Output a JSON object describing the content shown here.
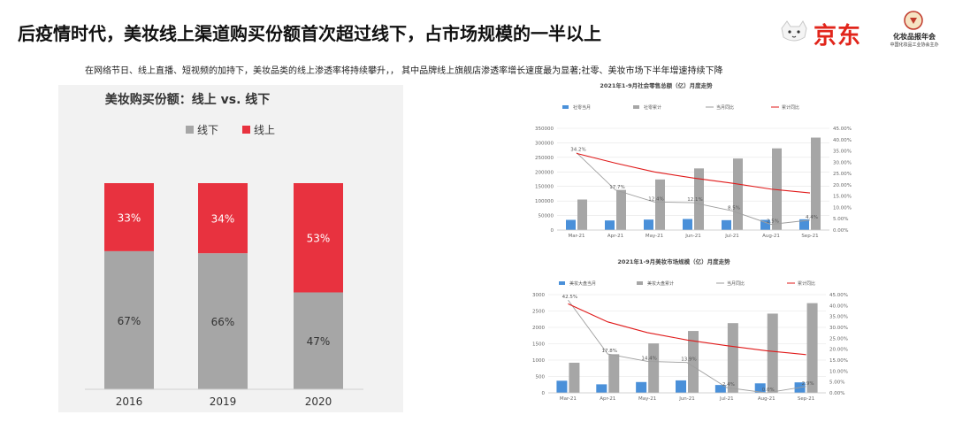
{
  "header": {
    "title": "后疫情时代，美妆线上渠道购买份额首次超过线下，占市场规模的一半以上",
    "subtitle": "在网络节日、线上直播、短视频的加持下，美妆品类的线上渗透率将持续攀升，，  其中品牌线上旗舰店渗透率增长速度最为显著;社零、美妆市场下半年增速持续下降"
  },
  "logos": {
    "jd_text": "京东",
    "assoc_name": "化妆品报年会",
    "assoc_subname": "中国化妆品工业协会主办",
    "jd_icon": "dog-icon",
    "assoc_icon": "seal-icon"
  },
  "colors": {
    "offline": "#a6a6a6",
    "online": "#e8323f",
    "blue": "#4a90d9",
    "gray": "#a6a6a6",
    "red_line": "#e01a1a",
    "gray_line": "#9e9e9e"
  },
  "chart_data": [
    {
      "type": "bar",
      "stacked": true,
      "percent": true,
      "title": "美妆购买份额：线上 vs. 线下",
      "categories": [
        "2016",
        "2019",
        "2020"
      ],
      "series": [
        {
          "name": "线下",
          "values": [
            67,
            66,
            47
          ],
          "labels": [
            "67%",
            "66%",
            "47%"
          ]
        },
        {
          "name": "线上",
          "values": [
            33,
            34,
            53
          ],
          "labels": [
            "33%",
            "34%",
            "53%"
          ]
        }
      ],
      "legend": "top-center",
      "ylim": [
        0,
        100
      ],
      "grid": false
    },
    {
      "type": "bar",
      "combo": "bar-line",
      "title": "2021年1-9月社会零售总额（亿）月度走势",
      "categories": [
        "Mar-21",
        "Apr-21",
        "May-21",
        "Jun-21",
        "Jul-21",
        "Aug-21",
        "Sep-21"
      ],
      "y_left_ticks": [
        "0",
        "50000",
        "100000",
        "150000",
        "200000",
        "250000",
        "300000",
        "350000"
      ],
      "y_right_ticks": [
        "0.00%",
        "5.00%",
        "10.00%",
        "15.00%",
        "20.00%",
        "25.00%",
        "30.00%",
        "35.00%",
        "40.00%",
        "45.00%"
      ],
      "ylim_left": [
        0,
        350000
      ],
      "ylim_right": [
        0,
        45
      ],
      "series": [
        {
          "name": "社零当月",
          "kind": "bar",
          "axis": "left",
          "values": [
            35000,
            33000,
            36000,
            38000,
            34000,
            35000,
            37000
          ]
        },
        {
          "name": "社零累计",
          "kind": "bar",
          "axis": "left",
          "values": [
            105000,
            138000,
            174000,
            212000,
            246000,
            281000,
            318000
          ]
        },
        {
          "name": "当月同比",
          "kind": "line",
          "axis": "right",
          "values": [
            34.2,
            17.7,
            12.4,
            12.1,
            8.5,
            2.5,
            4.4
          ],
          "labels": [
            "34.2%",
            "17.7%",
            "12.4%",
            "12.1%",
            "8.5%",
            "2.5%",
            "4.4%"
          ]
        },
        {
          "name": "累计同比",
          "kind": "line",
          "axis": "right",
          "values": [
            33.9,
            29.6,
            25.7,
            23.0,
            20.7,
            18.1,
            16.4
          ]
        }
      ],
      "legend": "top",
      "grid": true
    },
    {
      "type": "bar",
      "combo": "bar-line",
      "title": "2021年1-9月美妆市场规模（亿）月度走势",
      "categories": [
        "Mar-21",
        "Apr-21",
        "May-21",
        "Jun-21",
        "Jul-21",
        "Aug-21",
        "Sep-21"
      ],
      "y_left_ticks": [
        "0",
        "500",
        "1000",
        "1500",
        "2000",
        "2500",
        "3000"
      ],
      "y_right_ticks": [
        "0.00%",
        "5.00%",
        "10.00%",
        "15.00%",
        "20.00%",
        "25.00%",
        "30.00%",
        "35.00%",
        "40.00%",
        "45.00%"
      ],
      "ylim_left": [
        0,
        3000
      ],
      "ylim_right": [
        0,
        45
      ],
      "series": [
        {
          "name": "美妆大盘当月",
          "kind": "bar",
          "axis": "left",
          "values": [
            370,
            260,
            330,
            380,
            240,
            290,
            320
          ]
        },
        {
          "name": "美妆大盘累计",
          "kind": "bar",
          "axis": "left",
          "values": [
            920,
            1180,
            1510,
            1890,
            2130,
            2420,
            2740
          ]
        },
        {
          "name": "当月同比",
          "kind": "line",
          "axis": "right",
          "values": [
            42.5,
            17.8,
            14.4,
            13.9,
            2.4,
            0.0,
            2.9
          ],
          "labels": [
            "42.5%",
            "17.8%",
            "14.4%",
            "13.9%",
            "2.4%",
            "0.0%",
            "2.9%"
          ]
        },
        {
          "name": "累计同比",
          "kind": "line",
          "axis": "right",
          "values": [
            40.8,
            32.5,
            27.6,
            24.2,
            21.6,
            19.3,
            17.5
          ]
        }
      ],
      "legend": "top",
      "grid": true
    }
  ]
}
